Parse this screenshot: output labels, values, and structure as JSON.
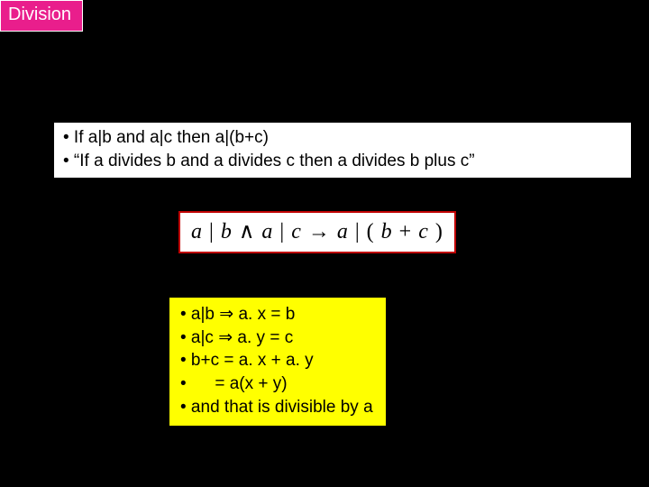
{
  "title": "Division",
  "theorem": {
    "line1": "• If a|b and a|c then a|(b+c)",
    "line2": "• “If a divides b and a divides c then a divides b plus c”"
  },
  "formula": {
    "p1": "a",
    "p2": "|",
    "p3": "b",
    "p4": "∧",
    "p5": "a",
    "p6": "|",
    "p7": "c",
    "p8": "→",
    "p9": "a",
    "p10": "|",
    "p11": "(",
    "p12": "b",
    "p13": "+",
    "p14": "c",
    "p15": ")"
  },
  "proof": {
    "l1a": "• a|b ",
    "l1b": "⇒",
    "l1c": " a. x = b",
    "l2a": "• a|c ",
    "l2b": "⇒",
    "l2c": " a. y = c",
    "l3": "• b+c = a. x + a. y",
    "l4": "•      = a(x + y)",
    "l5": "• and that is divisible by a"
  },
  "colors": {
    "background": "#000000",
    "title_bg": "#e91e8c",
    "title_fg": "#ffffff",
    "box_bg": "#ffffff",
    "box_fg": "#000000",
    "formula_border": "#c00000",
    "proof_bg": "#ffff00"
  }
}
